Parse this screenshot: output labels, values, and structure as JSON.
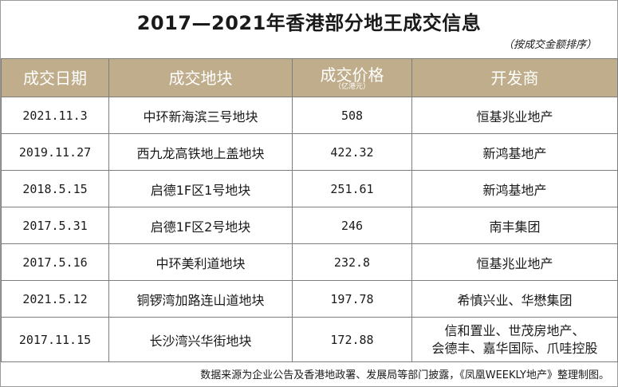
{
  "title": "2017—2021年香港部分地王成交信息",
  "note": "（按成交金额排序）",
  "columns": {
    "date": "成交日期",
    "plot": "成交地块",
    "price": "成交价格",
    "price_unit": "（亿港元）",
    "developer": "开发商"
  },
  "rows": [
    {
      "date": "2021.11.3",
      "plot": "中环新海滨三号地块",
      "price": "508",
      "developer": "恒基兆业地产"
    },
    {
      "date": "2019.11.27",
      "plot": "西九龙高铁地上盖地块",
      "price": "422.32",
      "developer": "新鸿基地产"
    },
    {
      "date": "2018.5.15",
      "plot": "启德1F区1号地块",
      "price": "251.61",
      "developer": "新鸿基地产"
    },
    {
      "date": "2017.5.31",
      "plot": "启德1F区2号地块",
      "price": "246",
      "developer": "南丰集团"
    },
    {
      "date": "2017.5.16",
      "plot": "中环美利道地块",
      "price": "232.8",
      "developer": "恒基兆业地产"
    },
    {
      "date": "2021.5.12",
      "plot": "铜锣湾加路连山道地块",
      "price": "197.78",
      "developer": "希慎兴业、华懋集团"
    },
    {
      "date": "2017.11.15",
      "plot": "长沙湾兴华街地块",
      "price": "172.88",
      "developer_line1": "信和置业、世茂房地产、",
      "developer_line2": "会德丰、嘉华国际、爪哇控股"
    }
  ],
  "footer": "数据来源为企业公告及香港地政署、发展局等部门披露，《凤凰WEEKLY地产》整理制图。"
}
